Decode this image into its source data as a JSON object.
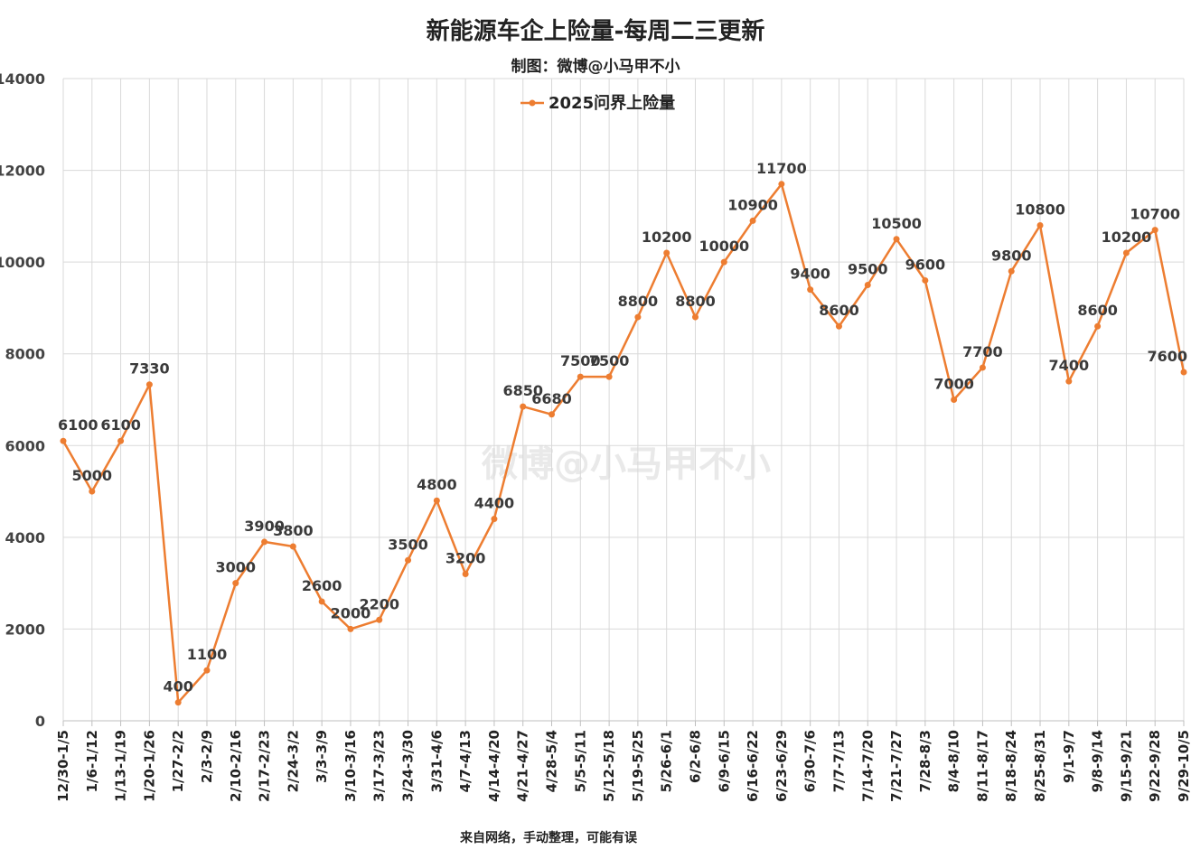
{
  "chart_data": {
    "type": "line",
    "title": "新能源车企上险量-每周二三更新",
    "subtitle": "制图：微博@小马甲不小",
    "footer": "来自网络，手动整理，可能有误",
    "watermark": "微博@小马甲不小",
    "ylim": [
      0,
      14000
    ],
    "yticks": [
      0,
      2000,
      4000,
      6000,
      8000,
      10000,
      12000,
      14000
    ],
    "grid": true,
    "legend_position": "top-center",
    "categories": [
      "12/30-1/5",
      "1/6-1/12",
      "1/13-1/19",
      "1/20-1/26",
      "1/27-2/2",
      "2/3-2/9",
      "2/10-2/16",
      "2/17-2/23",
      "2/24-3/2",
      "3/3-3/9",
      "3/10-3/16",
      "3/17-3/23",
      "3/24-3/30",
      "3/31-4/6",
      "4/7-4/13",
      "4/14-4/20",
      "4/21-4/27",
      "4/28-5/4",
      "5/5-5/11",
      "5/12-5/18",
      "5/19-5/25",
      "5/26-6/1",
      "6/2-6/8",
      "6/9-6/15",
      "6/16-6/22",
      "6/23-6/29",
      "6/30-7/6",
      "7/7-7/13",
      "7/14-7/20",
      "7/21-7/27",
      "7/28-8/3",
      "8/4-8/10",
      "8/11-8/17",
      "8/18-8/24",
      "8/25-8/31",
      "9/1-9/7",
      "9/8-9/14",
      "9/15-9/21",
      "9/22-9/28",
      "9/29-10/5"
    ],
    "series": [
      {
        "name": "2025问界上险量",
        "color": "#ED7D31",
        "values": [
          6100,
          5000,
          6100,
          7330,
          400,
          1100,
          3000,
          3900,
          3800,
          2600,
          2000,
          2200,
          3500,
          4800,
          3200,
          4400,
          6850,
          6680,
          7500,
          7500,
          8800,
          10200,
          8800,
          10000,
          10900,
          11700,
          9400,
          8600,
          9500,
          10500,
          9600,
          7000,
          7700,
          9800,
          10800,
          7400,
          8600,
          10200,
          10700,
          7600
        ]
      }
    ]
  }
}
